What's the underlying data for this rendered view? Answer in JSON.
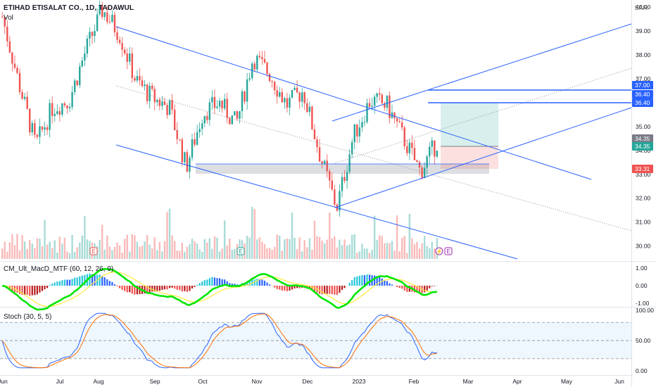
{
  "header": {
    "symbol_title": "ETIHAD ETISALAT CO., 1D, TADAWUL",
    "volume_label": "Vol",
    "currency": "SAR"
  },
  "panes": {
    "macd_label": "CM_Ult_MacD_MTF (60, 12, 26, 9)",
    "stoch_label": "Stoch (30, 5, 5)"
  },
  "colors": {
    "up": "#26a69a",
    "down": "#ef5350",
    "trendline": "#2962ff",
    "zone": "#b2b5be",
    "target_zone": "#26a69a",
    "stop_zone": "#ef5350",
    "stoch_k": "#2962ff",
    "stoch_d": "#ff6d00",
    "macd_green": "#00e600",
    "macd_red": "#ff2a2a",
    "signal": "#ffeb3b"
  },
  "chart_data": [
    {
      "type": "candlestick",
      "pane": "price",
      "y_axis_ticks": [
        "40.00",
        "39.00",
        "38.00",
        "37.00",
        "36.00",
        "35.00",
        "34.00",
        "33.00",
        "32.00",
        "31.00",
        "30.00"
      ],
      "ylim": [
        29.4,
        40.3
      ],
      "x_axis_ticks": [
        "Jun",
        "Jul",
        "Aug",
        "Sep",
        "Oct",
        "Nov",
        "Dec",
        "2023",
        "Feb",
        "Mar",
        "Apr",
        "May",
        "Jun"
      ],
      "close_path": [
        [
          "Jun",
          39.6
        ],
        [
          "mid-Jun",
          36.8
        ],
        [
          "late-Jun",
          34.2
        ],
        [
          "Jul",
          35.8
        ],
        [
          "mid-Jul",
          36.1
        ],
        [
          "late-Jul",
          38.2
        ],
        [
          "early-Aug",
          39.9
        ],
        [
          "mid-Aug",
          38.9
        ],
        [
          "late-Aug",
          36.9
        ],
        [
          "Sep",
          36.2
        ],
        [
          "mid-Sep",
          35.8
        ],
        [
          "late-Sep",
          33.3
        ],
        [
          "Oct",
          35.6
        ],
        [
          "mid-Oct",
          36.0
        ],
        [
          "late-Oct",
          35.1
        ],
        [
          "Nov",
          37.9
        ],
        [
          "mid-Nov",
          37.2
        ],
        [
          "late-Nov",
          35.9
        ],
        [
          "Dec",
          36.5
        ],
        [
          "mid-Dec",
          33.8
        ],
        [
          "late-Dec",
          31.6
        ],
        [
          "2023",
          34.6
        ],
        [
          "mid-Jan",
          36.1
        ],
        [
          "late-Jan",
          35.9
        ],
        [
          "Feb",
          34.5
        ],
        [
          "mid-Feb",
          33.1
        ],
        [
          "last",
          34.35
        ]
      ],
      "price_labels": [
        {
          "value": "37.00",
          "style": "blue"
        },
        {
          "value": "36.40",
          "style": "blue"
        },
        {
          "value": "36.40",
          "style": "blue"
        },
        {
          "value": "34.35",
          "style": "gray"
        },
        {
          "value": "34.35",
          "style": "green"
        },
        {
          "value": "33.31",
          "style": "red"
        }
      ],
      "drawings": [
        "descending channel",
        "ascending channel with midline",
        "horizontal support zone 33.0–33.3",
        "long position box: entry 34.35, target 36.40, stop 33.31",
        "horizontal lines at 37.00 and 36.40"
      ],
      "event_markers": [
        "E",
        "E",
        "E",
        "E"
      ]
    },
    {
      "type": "bar",
      "pane": "volume",
      "series_colors": "volume colored by candle direction (red down, green up)"
    },
    {
      "type": "line",
      "pane": "macd",
      "y_axis_ticks": [
        "1.00",
        "0.00",
        "-1.00"
      ],
      "ylim": [
        -1.3,
        1.3
      ]
    },
    {
      "type": "line",
      "pane": "stoch",
      "y_axis_ticks": [
        "100.00",
        "50.00",
        "0.00"
      ],
      "ylim": [
        0,
        100
      ],
      "bands": [
        20,
        50,
        80
      ]
    }
  ]
}
